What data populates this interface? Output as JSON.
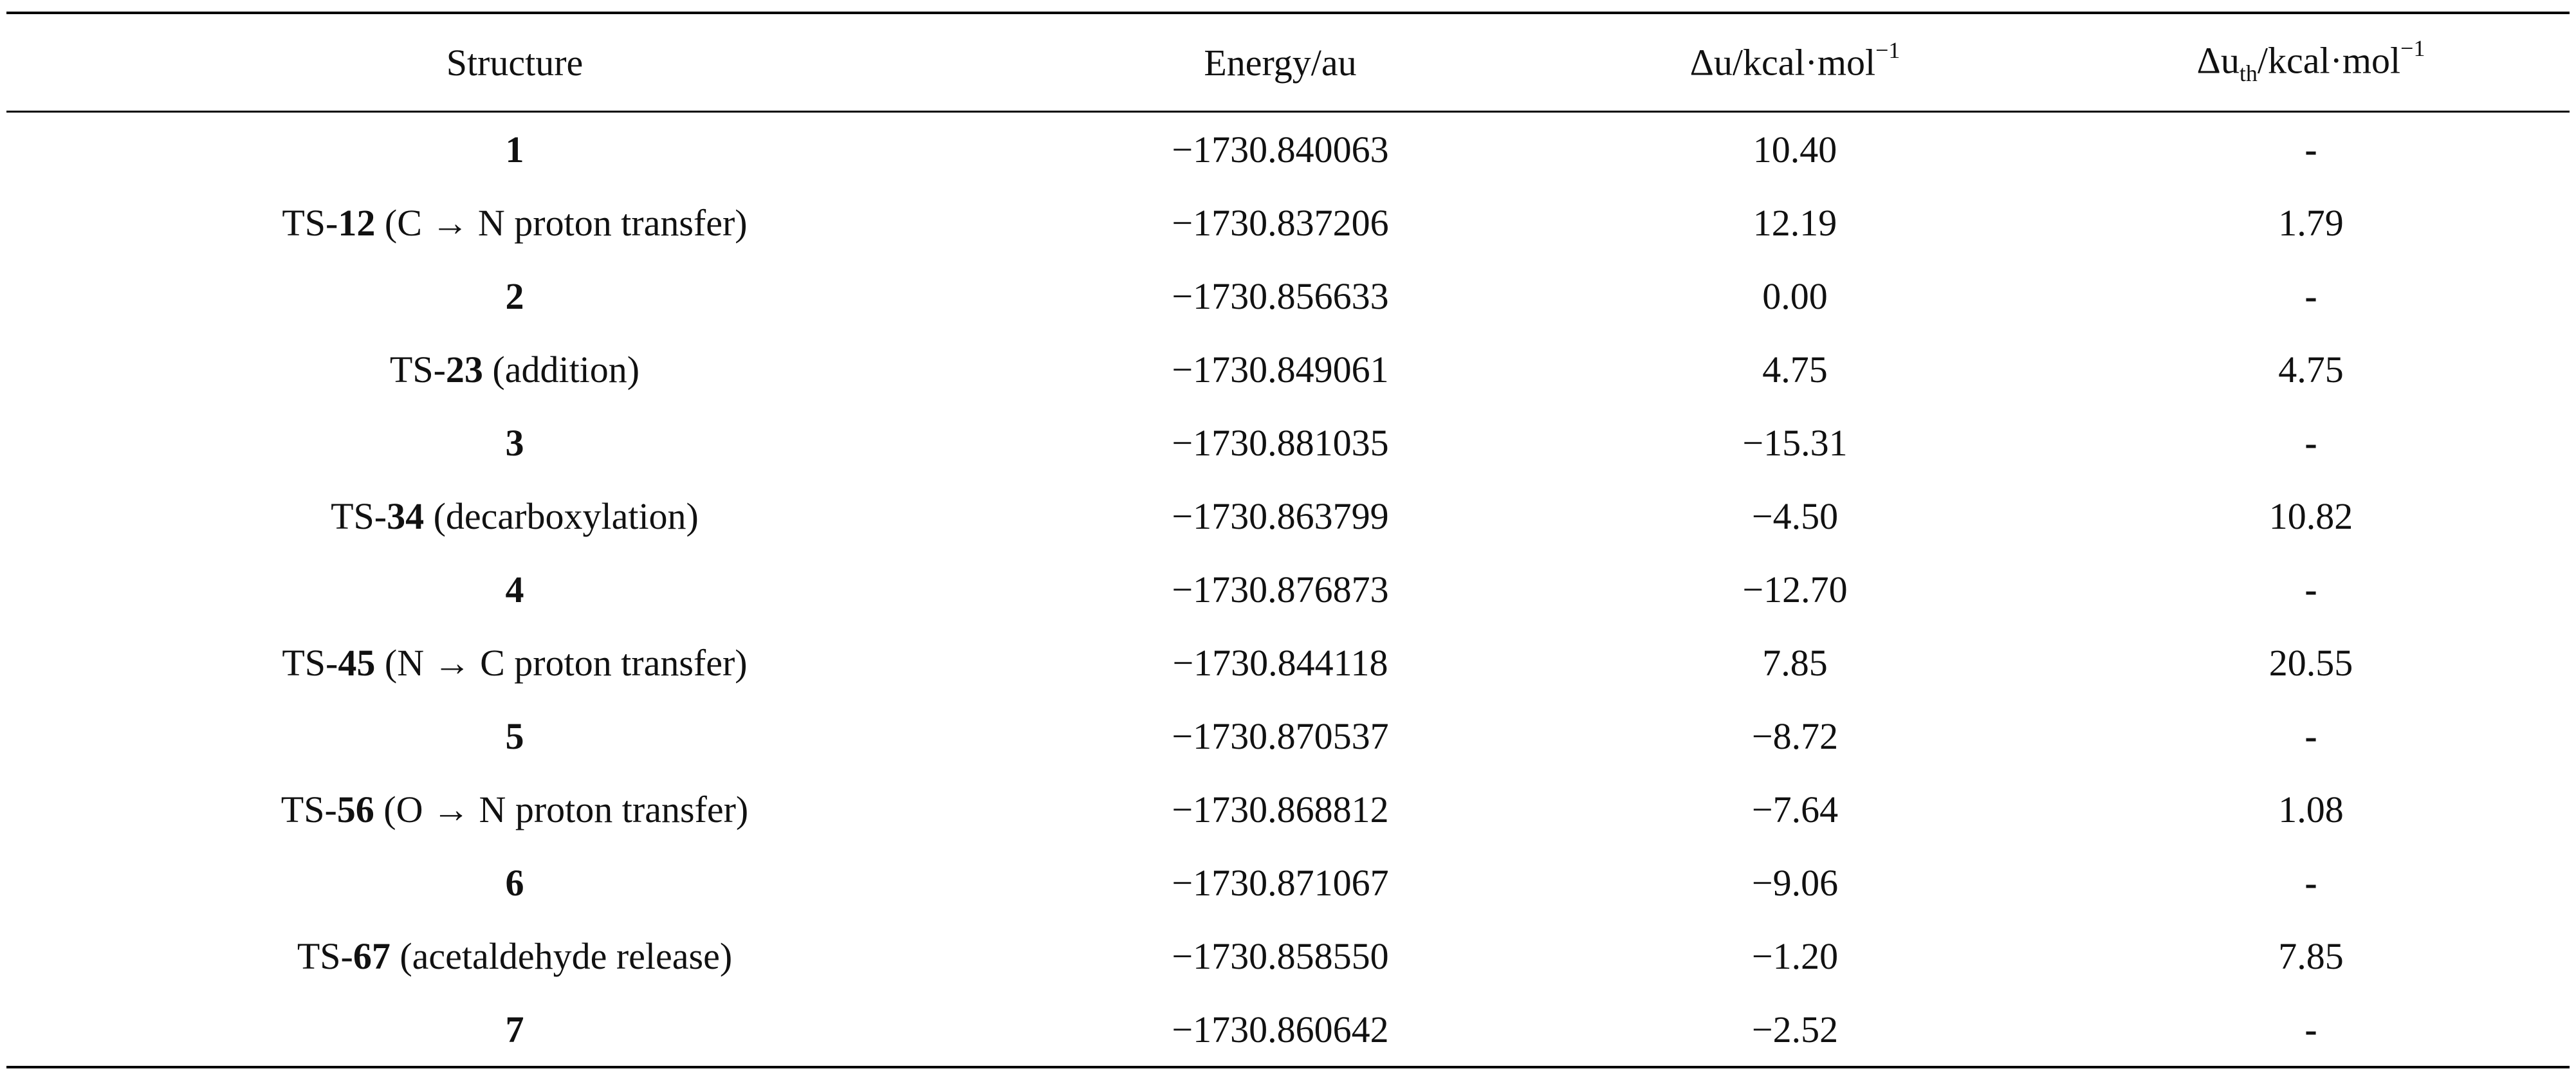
{
  "table": {
    "headers": {
      "structure": "Structure",
      "energy": "Energy/au",
      "du_prefix": "Δu/kcal·mol",
      "du_exp": "−1",
      "duth_prefix": "Δu",
      "duth_sub": "th",
      "duth_unit": "/kcal·mol",
      "duth_exp": "−1"
    },
    "rows": [
      {
        "prefix": "",
        "bold": "1",
        "suffix": "",
        "energy": "−1730.840063",
        "du": "10.40",
        "duth": "-"
      },
      {
        "prefix": "TS-",
        "bold": "12",
        "suffix": " (C → N proton transfer)",
        "energy": "−1730.837206",
        "du": "12.19",
        "duth": "1.79"
      },
      {
        "prefix": "",
        "bold": "2",
        "suffix": "",
        "energy": "−1730.856633",
        "du": "0.00",
        "duth": "-"
      },
      {
        "prefix": "TS-",
        "bold": "23",
        "suffix": " (addition)",
        "energy": "−1730.849061",
        "du": "4.75",
        "duth": "4.75"
      },
      {
        "prefix": "",
        "bold": "3",
        "suffix": "",
        "energy": "−1730.881035",
        "du": "−15.31",
        "duth": "-"
      },
      {
        "prefix": "TS-",
        "bold": "34",
        "suffix": " (decarboxylation)",
        "energy": "−1730.863799",
        "du": "−4.50",
        "duth": "10.82"
      },
      {
        "prefix": "",
        "bold": "4",
        "suffix": "",
        "energy": "−1730.876873",
        "du": "−12.70",
        "duth": "-"
      },
      {
        "prefix": "TS-",
        "bold": "45",
        "suffix": " (N → C proton transfer)",
        "energy": "−1730.844118",
        "du": "7.85",
        "duth": "20.55"
      },
      {
        "prefix": "",
        "bold": "5",
        "suffix": "",
        "energy": "−1730.870537",
        "du": "−8.72",
        "duth": "-"
      },
      {
        "prefix": "TS-",
        "bold": "56",
        "suffix": " (O → N proton transfer)",
        "energy": "−1730.868812",
        "du": "−7.64",
        "duth": "1.08"
      },
      {
        "prefix": "",
        "bold": "6",
        "suffix": "",
        "energy": "−1730.871067",
        "du": "−9.06",
        "duth": "-"
      },
      {
        "prefix": "TS-",
        "bold": "67",
        "suffix": " (acetaldehyde release)",
        "energy": "−1730.858550",
        "du": "−1.20",
        "duth": "7.85"
      },
      {
        "prefix": "",
        "bold": "7",
        "suffix": "",
        "energy": "−1730.860642",
        "du": "−2.52",
        "duth": "-"
      }
    ]
  }
}
